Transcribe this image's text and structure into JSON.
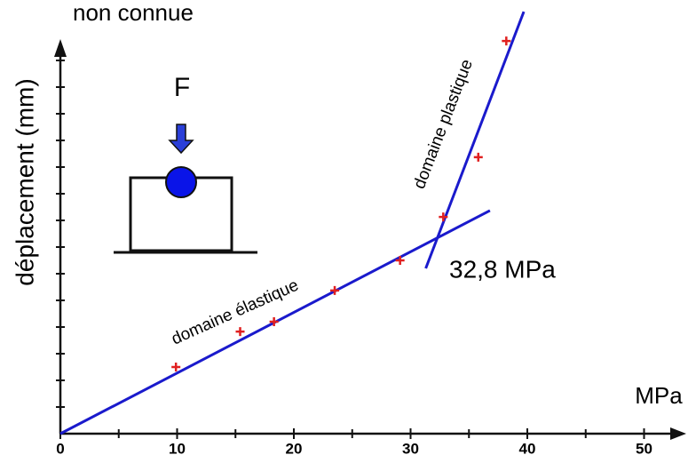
{
  "chart_data": {
    "type": "scatter",
    "title": "non connue",
    "y_label": "déplacement (mm)",
    "x_label": "MPa",
    "force_label": "F",
    "xlim": [
      0,
      53
    ],
    "ylim": [
      0,
      16
    ],
    "xticks": [
      0,
      10,
      20,
      30,
      40,
      50
    ],
    "yticks": [
      1,
      2,
      3,
      4,
      5,
      6,
      7,
      8,
      9,
      10,
      11,
      12,
      13,
      14
    ],
    "points": {
      "color": "#e02020",
      "x": [
        9.9,
        15.4,
        18.3,
        23.5,
        29.1,
        32.8,
        35.8,
        38.2
      ],
      "values": [
        2.5,
        3.83,
        4.2,
        5.37,
        6.5,
        8.13,
        10.37,
        14.73
      ]
    },
    "lines": [
      {
        "label": "domaine élastique",
        "color": "#1a1acc",
        "x": [
          0,
          36.8
        ],
        "values": [
          0,
          8.37
        ]
      },
      {
        "label": "domaine plastique",
        "color": "#1a1acc",
        "x": [
          31.3,
          39.7
        ],
        "values": [
          6.2,
          15.83
        ]
      }
    ],
    "annotation": "32,8 MPa"
  }
}
